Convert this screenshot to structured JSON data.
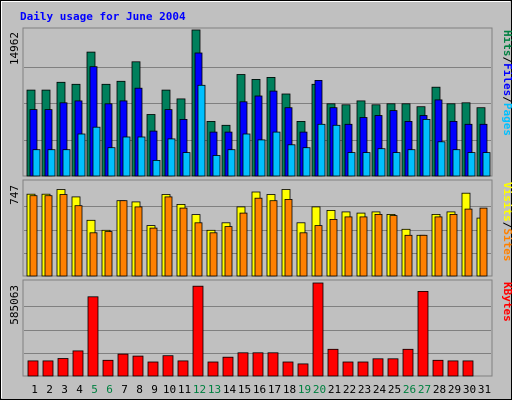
{
  "chart_data": {
    "type": "bar",
    "title": "Daily usage for June 2004",
    "categories": [
      "1",
      "2",
      "3",
      "4",
      "5",
      "6",
      "7",
      "8",
      "9",
      "10",
      "11",
      "12",
      "13",
      "14",
      "15",
      "16",
      "17",
      "18",
      "19",
      "20",
      "21",
      "22",
      "23",
      "24",
      "25",
      "26",
      "27",
      "28",
      "29",
      "30",
      "31"
    ],
    "weekend_days": [
      "5",
      "6",
      "12",
      "13",
      "19",
      "20",
      "26",
      "27"
    ],
    "panels": [
      {
        "id": "hits-files-pages",
        "ymax_label": "14962",
        "ymax": 14962,
        "legend": [
          {
            "name": "Pages",
            "color": "#00c0ff"
          },
          {
            "name": "Files",
            "color": "#0000ff"
          },
          {
            "name": "Hits",
            "color": "#008040"
          }
        ],
        "series": [
          {
            "name": "Hits",
            "color": "#00805c",
            "values": [
              8800,
              8800,
              9600,
              9400,
              12700,
              9400,
              9700,
              11700,
              6300,
              8800,
              7900,
              14962,
              5600,
              5200,
              10400,
              9900,
              10100,
              8400,
              5600,
              9400,
              7400,
              7300,
              7700,
              7300,
              7400,
              7400,
              7100,
              9100,
              7400,
              7500,
              7000
            ]
          },
          {
            "name": "Files",
            "color": "#0000ff",
            "values": [
              6800,
              6800,
              7500,
              7700,
              11200,
              7400,
              7700,
              9000,
              4600,
              6800,
              5800,
              12600,
              4500,
              4500,
              7600,
              8200,
              8700,
              7000,
              4500,
              9800,
              7000,
              5300,
              6000,
              6200,
              6700,
              5600,
              6200,
              7800,
              5600,
              5300,
              5300
            ]
          },
          {
            "name": "Pages",
            "color": "#00c0ff",
            "values": [
              2700,
              2700,
              2700,
              4300,
              5000,
              2900,
              4000,
              4000,
              1600,
              3800,
              2400,
              9300,
              2100,
              2700,
              4300,
              3700,
              4500,
              3200,
              2900,
              5300,
              5200,
              2400,
              2400,
              2800,
              2400,
              2700,
              5800,
              3500,
              2700,
              2400,
              2400
            ]
          }
        ]
      },
      {
        "id": "visits-sites",
        "ymax_label": "747",
        "ymax": 747,
        "legend": [
          {
            "name": "Sites",
            "color": "#ff8000"
          },
          {
            "name": "Visits",
            "color": "#ffff00"
          }
        ],
        "series": [
          {
            "name": "Visits",
            "color": "#ffff00",
            "values": [
              657,
              657,
              695,
              635,
              447,
              367,
              605,
              595,
              405,
              655,
              575,
              493,
              367,
              427,
              555,
              675,
              655,
              695,
              427,
              555,
              527,
              515,
              505,
              515,
              495,
              375,
              327,
              495,
              515,
              665,
              465
            ]
          },
          {
            "name": "Sites",
            "color": "#ff8000",
            "values": [
              645,
              645,
              655,
              565,
              347,
              357,
              605,
              555,
              385,
              635,
              545,
              427,
              347,
              397,
              505,
              625,
              605,
              615,
              347,
              405,
              455,
              475,
              475,
              495,
              485,
              327,
              327,
              475,
              495,
              537,
              545
            ]
          }
        ]
      },
      {
        "id": "kbytes",
        "ymax_label": "585063",
        "ymax": 585063,
        "legend": [
          {
            "name": "KBytes",
            "color": "#ff0000"
          }
        ],
        "series": [
          {
            "name": "KBytes",
            "color": "#ff0000",
            "values": [
              95000,
              95000,
              110000,
              158000,
              498000,
              99000,
              138000,
              125000,
              88000,
              128000,
              95000,
              565000,
              88000,
              118000,
              146000,
              146000,
              146000,
              88000,
              76000,
              585063,
              168000,
              88000,
              88000,
              108000,
              108000,
              168000,
              532000,
              99000,
              95000,
              95000,
              0
            ]
          }
        ]
      }
    ]
  }
}
